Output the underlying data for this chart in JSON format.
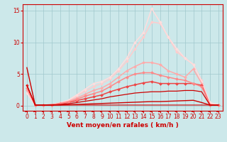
{
  "bg_color": "#cce8ea",
  "grid_color": "#a0c8cc",
  "xlabel": "Vent moyen/en rafales ( km/h )",
  "x_ticks": [
    0,
    1,
    2,
    3,
    4,
    5,
    6,
    7,
    8,
    9,
    10,
    11,
    12,
    13,
    14,
    15,
    16,
    17,
    18,
    19,
    20,
    21,
    22,
    23
  ],
  "ylim": [
    -0.8,
    16
  ],
  "yticks": [
    0,
    5,
    10,
    15
  ],
  "tick_fontsize": 5.5,
  "label_fontsize": 6.5,
  "series": [
    {
      "y": [
        6.0,
        0.1,
        0.1,
        0.1,
        0.1,
        0.15,
        0.2,
        0.25,
        0.3,
        0.35,
        0.4,
        0.45,
        0.5,
        0.55,
        0.6,
        0.65,
        0.65,
        0.7,
        0.75,
        0.8,
        0.85,
        0.5,
        0.1,
        0.1
      ],
      "color": "#cc0000",
      "lw": 1.0,
      "marker": null,
      "alpha": 1.0,
      "zorder": 5
    },
    {
      "y": [
        3.2,
        0.1,
        0.1,
        0.1,
        0.2,
        0.3,
        0.5,
        0.7,
        0.9,
        1.1,
        1.4,
        1.6,
        1.8,
        2.0,
        2.1,
        2.2,
        2.2,
        2.3,
        2.3,
        2.4,
        2.4,
        2.2,
        0.1,
        0.1
      ],
      "color": "#cc0000",
      "lw": 0.9,
      "marker": null,
      "alpha": 1.0,
      "zorder": 5
    },
    {
      "y": [
        3.2,
        0.1,
        0.1,
        0.1,
        0.1,
        0.1,
        0.1,
        0.1,
        0.1,
        0.1,
        0.1,
        0.1,
        0.1,
        0.1,
        0.1,
        0.1,
        0.1,
        0.1,
        0.1,
        0.1,
        0.1,
        0.1,
        0.1,
        0.1
      ],
      "color": "#cc0000",
      "lw": 0.8,
      "marker": null,
      "alpha": 1.0,
      "zorder": 5
    },
    {
      "y": [
        3.2,
        0.1,
        0.1,
        0.15,
        0.3,
        0.5,
        0.8,
        1.1,
        1.4,
        1.7,
        2.2,
        2.6,
        3.0,
        3.3,
        3.6,
        3.8,
        3.5,
        3.5,
        3.5,
        3.5,
        3.5,
        3.2,
        0.1,
        0.1
      ],
      "color": "#ee4444",
      "lw": 1.1,
      "marker": "D",
      "marker_size": 2.0,
      "alpha": 1.0,
      "zorder": 4
    },
    {
      "y": [
        2.8,
        0.1,
        0.1,
        0.15,
        0.35,
        0.6,
        1.0,
        1.5,
        1.9,
        2.3,
        3.0,
        3.8,
        4.5,
        5.0,
        5.2,
        5.2,
        4.8,
        4.5,
        4.2,
        4.0,
        3.5,
        3.0,
        0.1,
        0.1
      ],
      "color": "#ff8888",
      "lw": 1.1,
      "marker": "D",
      "marker_size": 2.0,
      "alpha": 1.0,
      "zorder": 4
    },
    {
      "y": [
        2.5,
        0.1,
        0.1,
        0.15,
        0.4,
        0.7,
        1.2,
        1.8,
        2.4,
        2.8,
        3.5,
        4.5,
        5.5,
        6.2,
        6.8,
        6.8,
        6.5,
        5.5,
        5.0,
        4.5,
        5.8,
        3.5,
        0.2,
        0.1
      ],
      "color": "#ffaaaa",
      "lw": 1.1,
      "marker": "D",
      "marker_size": 2.0,
      "alpha": 1.0,
      "zorder": 3
    },
    {
      "y": [
        2.0,
        0.1,
        0.1,
        0.15,
        0.4,
        0.8,
        1.5,
        2.3,
        3.0,
        3.5,
        4.2,
        5.5,
        7.0,
        9.0,
        10.8,
        13.2,
        13.0,
        10.8,
        8.5,
        7.5,
        6.5,
        4.0,
        0.3,
        0.1
      ],
      "color": "#ffcccc",
      "lw": 1.1,
      "marker": "D",
      "marker_size": 2.0,
      "alpha": 1.0,
      "zorder": 2
    },
    {
      "y": [
        2.0,
        0.1,
        0.1,
        0.15,
        0.45,
        0.9,
        1.7,
        2.6,
        3.5,
        3.8,
        4.5,
        5.8,
        7.5,
        10.0,
        11.5,
        15.3,
        13.2,
        10.8,
        9.0,
        7.5,
        6.5,
        3.8,
        0.5,
        0.1
      ],
      "color": "#ffdddd",
      "lw": 1.1,
      "marker": "D",
      "marker_size": 2.0,
      "alpha": 1.0,
      "zorder": 2
    }
  ]
}
